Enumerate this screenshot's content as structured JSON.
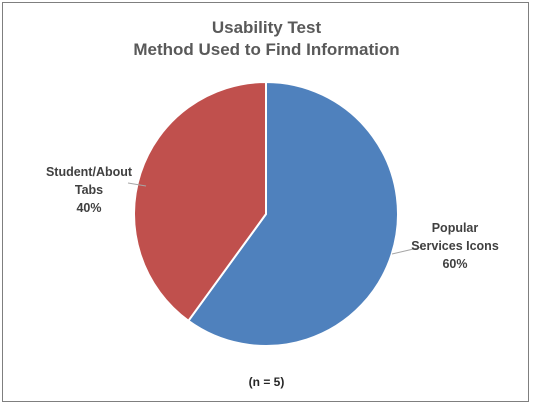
{
  "chart_data": {
    "type": "pie",
    "title": "Usability Test",
    "subtitle": "Method Used to Find Information",
    "slices": [
      {
        "label_lines": [
          "Popular",
          "Services Icons"
        ],
        "value": 60,
        "percent_label": "60%",
        "color": "#4F81BD"
      },
      {
        "label_lines": [
          "Student/About",
          "Tabs"
        ],
        "value": 40,
        "percent_label": "40%",
        "color": "#C0504D"
      }
    ],
    "annotation": "(n = 5)",
    "legend": "none",
    "data_labels": "outside with leader lines"
  }
}
